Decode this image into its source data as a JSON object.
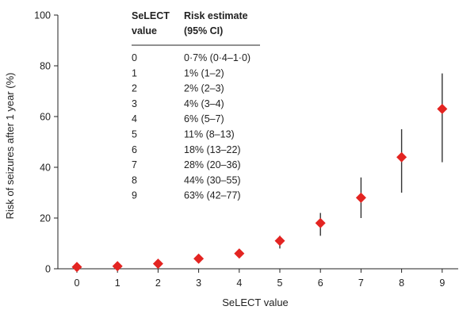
{
  "chart_data": {
    "type": "scatter",
    "xlabel": "SeLECT value",
    "ylabel": "Risk of seizures after 1 year (%)",
    "xticks": [
      "0",
      "1",
      "2",
      "3",
      "4",
      "5",
      "6",
      "7",
      "8",
      "9"
    ],
    "yticks": [
      "0",
      "20",
      "40",
      "60",
      "80",
      "100"
    ],
    "ylim": [
      0,
      100
    ],
    "marker_color": "#e32421",
    "errorbar_color": "#333333",
    "points": [
      {
        "x": 0,
        "y": 0.7,
        "low": 0.4,
        "high": 1.0
      },
      {
        "x": 1,
        "y": 1,
        "low": 1,
        "high": 2
      },
      {
        "x": 2,
        "y": 2,
        "low": 2,
        "high": 3
      },
      {
        "x": 3,
        "y": 4,
        "low": 3,
        "high": 4
      },
      {
        "x": 4,
        "y": 6,
        "low": 5,
        "high": 7
      },
      {
        "x": 5,
        "y": 11,
        "low": 8,
        "high": 13
      },
      {
        "x": 6,
        "y": 18,
        "low": 13,
        "high": 22
      },
      {
        "x": 7,
        "y": 28,
        "low": 20,
        "high": 36
      },
      {
        "x": 8,
        "y": 44,
        "low": 30,
        "high": 55
      },
      {
        "x": 9,
        "y": 63,
        "low": 42,
        "high": 77
      }
    ],
    "table": {
      "header_col1": [
        "SeLECT",
        "value"
      ],
      "header_col2": [
        "Risk estimate",
        "(95% CI)"
      ],
      "rows": [
        {
          "value": "0",
          "estimate": "0·7% (0·4–1·0)"
        },
        {
          "value": "1",
          "estimate": "1% (1–2)"
        },
        {
          "value": "2",
          "estimate": "2% (2–3)"
        },
        {
          "value": "3",
          "estimate": "4% (3–4)"
        },
        {
          "value": "4",
          "estimate": "6% (5–7)"
        },
        {
          "value": "5",
          "estimate": "11% (8–13)"
        },
        {
          "value": "6",
          "estimate": "18% (13–22)"
        },
        {
          "value": "7",
          "estimate": "28% (20–36)"
        },
        {
          "value": "8",
          "estimate": "44% (30–55)"
        },
        {
          "value": "9",
          "estimate": "63% (42–77)"
        }
      ]
    }
  }
}
